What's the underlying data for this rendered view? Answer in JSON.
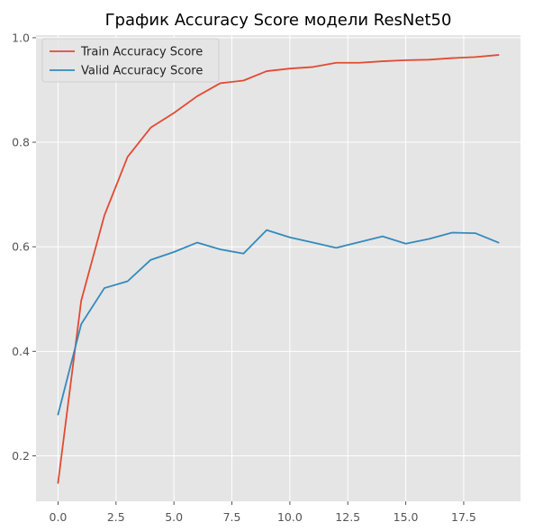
{
  "chart_data": {
    "type": "line",
    "title": "График Accuracy Score модели ResNet50",
    "xlabel": "",
    "ylabel": "",
    "x": [
      0,
      1,
      2,
      3,
      4,
      5,
      6,
      7,
      8,
      9,
      10,
      11,
      12,
      13,
      14,
      15,
      16,
      17,
      18,
      19
    ],
    "xlim": [
      -0.95,
      19.95
    ],
    "ylim": [
      0.113,
      1.005
    ],
    "xticks": [
      0.0,
      2.5,
      5.0,
      7.5,
      10.0,
      12.5,
      15.0,
      17.5
    ],
    "xtick_labels": [
      "0.0",
      "2.5",
      "5.0",
      "7.5",
      "10.0",
      "12.5",
      "15.0",
      "17.5"
    ],
    "yticks": [
      0.2,
      0.4,
      0.6,
      0.8,
      1.0
    ],
    "ytick_labels": [
      "0.2",
      "0.4",
      "0.6",
      "0.8",
      "1.0"
    ],
    "grid": true,
    "legend_position": "top-left",
    "style": "ggplot",
    "colors": {
      "background": "#E5E5E5",
      "grid": "#FFFFFF",
      "tick": "#555555"
    },
    "series": [
      {
        "name": "Train Accuracy Score",
        "color": "#E24A33",
        "values": [
          0.148,
          0.497,
          0.66,
          0.772,
          0.828,
          0.856,
          0.888,
          0.913,
          0.918,
          0.936,
          0.941,
          0.944,
          0.952,
          0.952,
          0.955,
          0.957,
          0.958,
          0.961,
          0.963,
          0.967
        ]
      },
      {
        "name": "Valid Accuracy Score",
        "color": "#348ABD",
        "values": [
          0.279,
          0.452,
          0.521,
          0.534,
          0.575,
          0.59,
          0.608,
          0.595,
          0.587,
          0.632,
          0.618,
          0.608,
          0.598,
          0.609,
          0.62,
          0.606,
          0.615,
          0.627,
          0.626,
          0.608
        ]
      }
    ]
  }
}
